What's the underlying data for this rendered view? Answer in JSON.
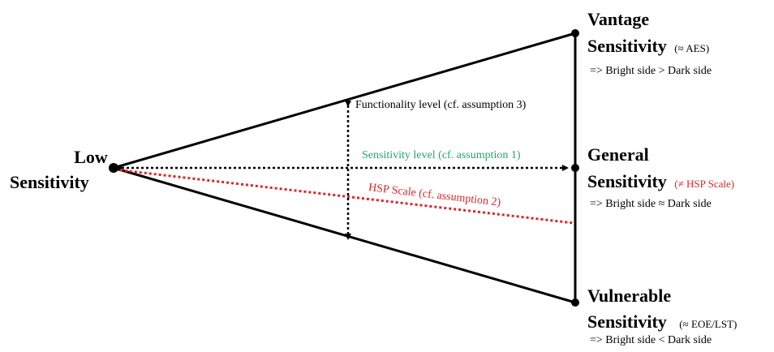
{
  "low": {
    "line1": "Low",
    "line2": "Sensitivity"
  },
  "vantage": {
    "line1": "Vantage",
    "line2": "Sensitivity",
    "tag": "(≈ AES)",
    "note": "=> Bright side > Dark side"
  },
  "general": {
    "line1": "General",
    "line2": "Sensitivity",
    "tag": "(≠ HSP Scale)",
    "note": "=> Bright side ≈ Dark side"
  },
  "vulnerable": {
    "line1": "Vulnerable",
    "line2": "Sensitivity",
    "tag": "(≈ EOE/LST)",
    "note": "=> Bright side < Dark side"
  },
  "axes": {
    "functionality": "Functionality level (cf. assumption 3)",
    "sensitivity": "Sensitivity level (cf. assumption 1)",
    "hsp": "HSP Scale (cf. assumption 2)"
  },
  "colors": {
    "line": "#000000",
    "sensitivity": "#2aa36b",
    "hsp": "#e0242a",
    "tag_red": "#e0242a"
  }
}
